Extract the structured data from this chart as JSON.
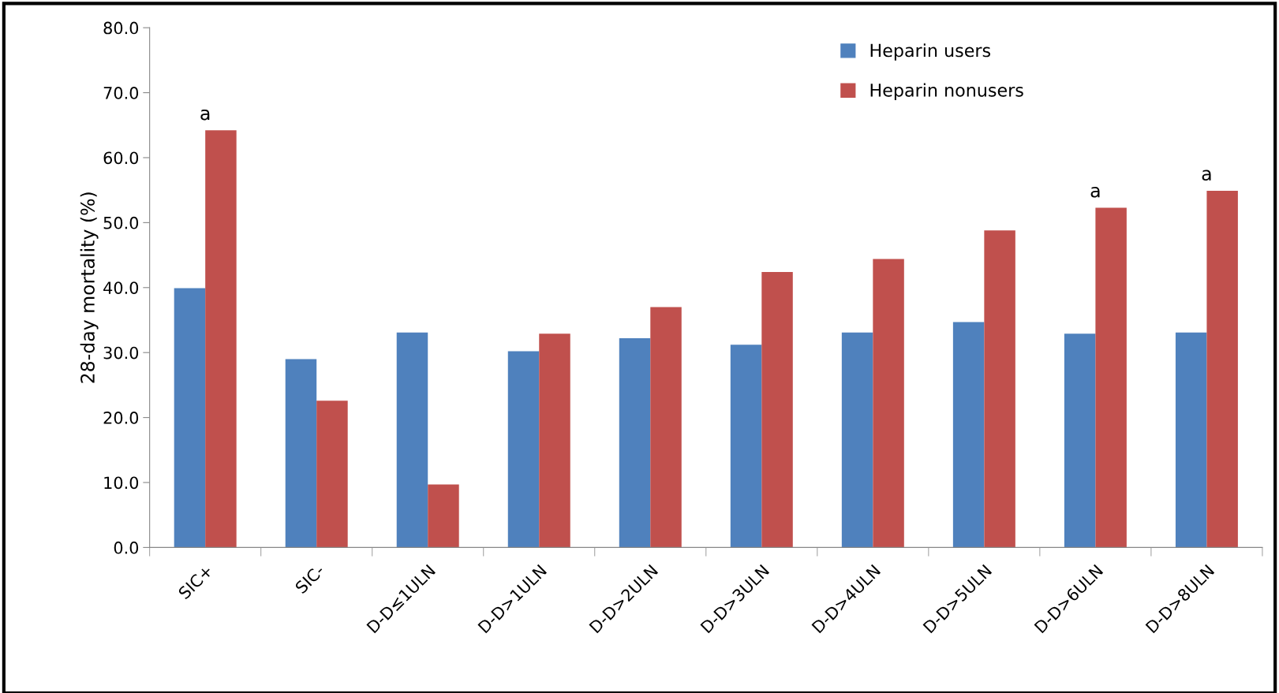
{
  "chart_data": {
    "type": "bar",
    "ylabel": "28-day mortality (%)",
    "categories": [
      "SIC+",
      "SIC-",
      "D-D≤1ULN",
      "D-D>1ULN",
      "D-D>2ULN",
      "D-D>3ULN",
      "D-D>4ULN",
      "D-D>5ULN",
      "D-D>6ULN",
      "D-D>8ULN"
    ],
    "series": [
      {
        "name": "Heparin users",
        "color": "#4f81bd",
        "values": [
          39.9,
          29.0,
          33.1,
          30.2,
          32.2,
          31.2,
          33.1,
          34.7,
          32.9,
          33.1
        ]
      },
      {
        "name": "Heparin nonusers",
        "color": "#c0504d",
        "values": [
          64.2,
          22.6,
          9.7,
          32.9,
          37.0,
          42.4,
          44.4,
          48.8,
          52.3,
          54.9
        ]
      }
    ],
    "ylim": [
      0,
      80
    ],
    "yticks": [
      {
        "value": 0,
        "label": "0.0"
      },
      {
        "value": 10,
        "label": "10.0"
      },
      {
        "value": 20,
        "label": "20.0"
      },
      {
        "value": 30,
        "label": "30.0"
      },
      {
        "value": 40,
        "label": "40.0"
      },
      {
        "value": 50,
        "label": "50.0"
      },
      {
        "value": 60,
        "label": "60.0"
      },
      {
        "value": 70,
        "label": "70.0"
      },
      {
        "value": 80,
        "label": "80.0"
      }
    ],
    "annotations": [
      {
        "text": "a",
        "x": "SIC+",
        "y": 64.2
      },
      {
        "text": "a",
        "x": "D-D>6ULN",
        "y": 52.3
      },
      {
        "text": "a",
        "x": "D-D>8ULN",
        "y": 54.9
      }
    ],
    "legend": "top right",
    "grid": false
  }
}
